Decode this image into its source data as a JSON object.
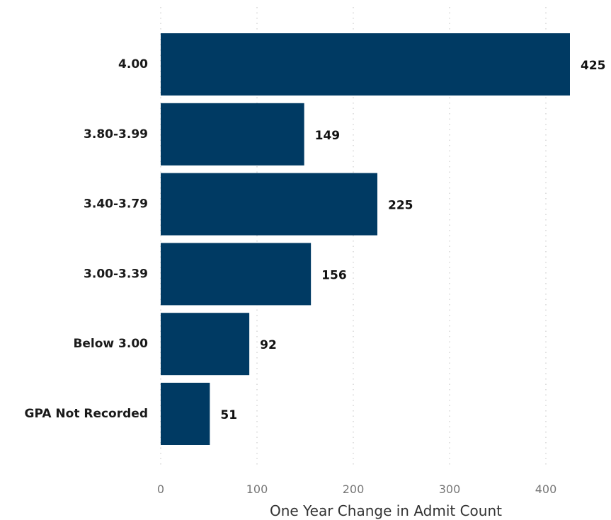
{
  "chart_data": {
    "type": "bar",
    "orientation": "horizontal",
    "categories": [
      "4.00",
      "3.80-3.99",
      "3.40-3.79",
      "3.00-3.39",
      "Below 3.00",
      "GPA Not Recorded"
    ],
    "values": [
      425,
      149,
      225,
      156,
      92,
      51
    ],
    "data_labels": [
      "425",
      "149",
      "225",
      "156",
      "92",
      "51"
    ],
    "x_ticks": [
      0,
      100,
      200,
      300,
      400
    ],
    "x_tick_labels": [
      "0",
      "100",
      "200",
      "300",
      "400"
    ],
    "xlim": [
      0,
      400
    ],
    "xlabel": "One Year Change in Admit Count",
    "ylabel": "",
    "title": "",
    "grid": "vertical dotted",
    "legend": "none",
    "bar_color": "#003a63"
  }
}
